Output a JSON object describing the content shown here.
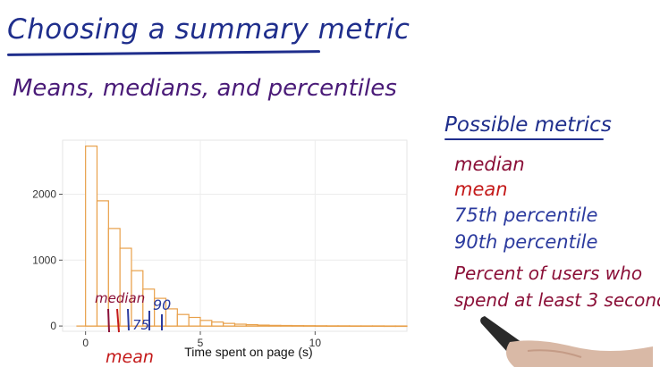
{
  "title": "Choosing a summary metric",
  "subtitle": "Means, medians, and percentiles",
  "metrics": {
    "heading": "Possible metrics",
    "items": [
      "median",
      "mean",
      "75th percentile",
      "90th percentile",
      "Percent of users who",
      "spend at least 3 second"
    ]
  },
  "annotations": {
    "median": "median",
    "mean": "mean",
    "p75": "75",
    "p90": "90"
  },
  "colors": {
    "blue": "#1f2e8c",
    "purple": "#4a1b78",
    "maroon": "#8b1038",
    "red": "#c41a1a",
    "bar_stroke": "#e8a04a"
  },
  "chart_data": {
    "type": "bar",
    "xlabel": "Time spent on page (s)",
    "ylabel": "",
    "xticks": [
      0,
      5,
      10
    ],
    "yticks": [
      0,
      1000,
      2000
    ],
    "xlim": [
      -1,
      14
    ],
    "ylim": [
      -80,
      2820
    ],
    "bin_width": 0.5,
    "bins_start": 0,
    "values": [
      2730,
      1900,
      1480,
      1180,
      840,
      560,
      420,
      260,
      175,
      130,
      85,
      60,
      40,
      28,
      20,
      14,
      10,
      8,
      6,
      5,
      4,
      3,
      3,
      2,
      2,
      2,
      1,
      1
    ],
    "grid": true
  }
}
